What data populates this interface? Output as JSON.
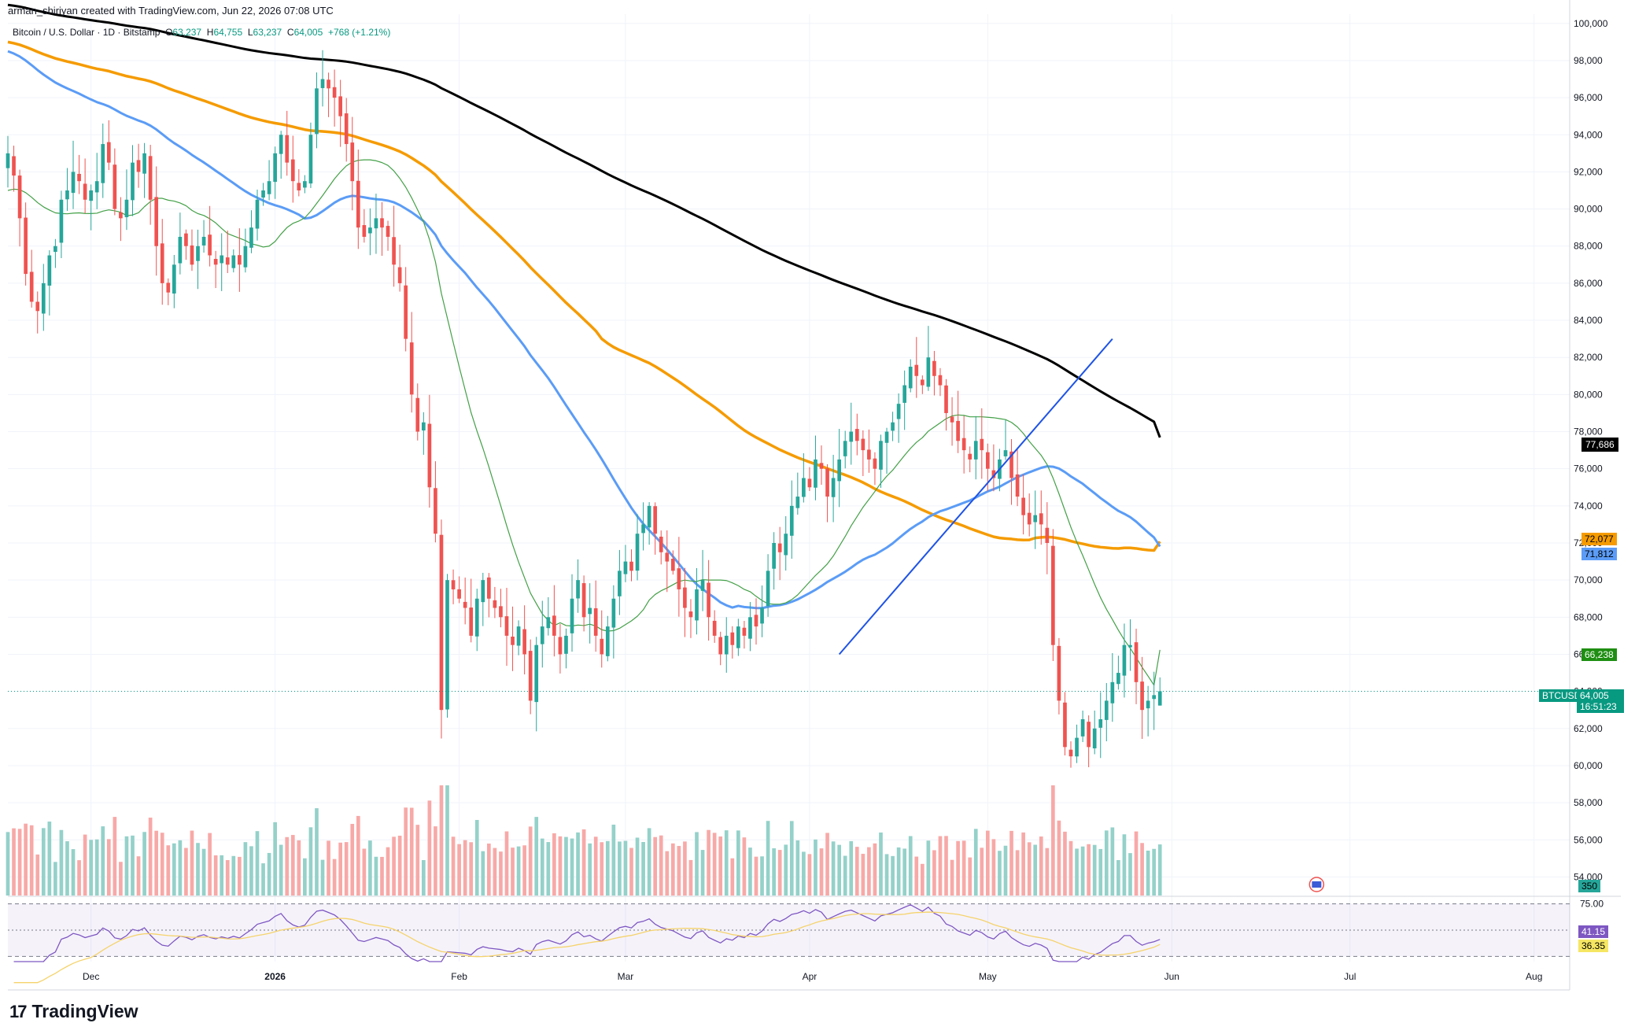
{
  "header": {
    "author_line": "arman_shiriyan created with TradingView.com, Jun 22, 2026 07:08 UTC"
  },
  "legend": {
    "symbol": "Bitcoin / U.S. Dollar · 1D · Bitstamp",
    "o_label": "O",
    "o": "63,237",
    "h_label": "H",
    "h": "64,755",
    "l_label": "L",
    "l": "63,237",
    "c_label": "C",
    "c": "64,005",
    "change": "+768 (+1.21%)"
  },
  "brand": {
    "name": "TradingView",
    "mark": "17"
  },
  "tags": {
    "ma200": "77,686",
    "ma100": "72,077",
    "ma50": "71,812",
    "ma20": "66,238",
    "symbol": "BTCUSD",
    "price": "64,005",
    "countdown": "16:51:23",
    "volume": "350",
    "rsi": "41.15",
    "rsi_ma": "36.35"
  },
  "colors": {
    "up": "#26a69a",
    "down": "#ef5350",
    "vol_up": "#94d1c9",
    "vol_down": "#f7a9a7",
    "ma20": "#43a047",
    "ma50": "#5b9cf6",
    "ma100": "#f59b00",
    "ma200": "#000000",
    "trendline": "#1e53e5",
    "rsi": "#7e57c2",
    "rsi_ma": "#f5d36b"
  },
  "chart_data": {
    "type": "candlestick",
    "symbol": "BTCUSD",
    "timeframe": "1D",
    "exchange": "Bitstamp",
    "price_axis": {
      "min": 53000,
      "max": 100500,
      "ticks": [
        "100,000",
        "98,000",
        "96,000",
        "94,000",
        "92,000",
        "90,000",
        "88,000",
        "86,000",
        "84,000",
        "82,000",
        "80,000",
        "78,000",
        "76,000",
        "74,000",
        "72,000",
        "70,000",
        "68,000",
        "66,000",
        "64,000",
        "62,000",
        "60,000",
        "58,000",
        "56,000",
        "54,000"
      ]
    },
    "time_axis": {
      "start": "2025-11-17",
      "end": "2026-08-07",
      "labels": [
        {
          "date": "2025-12-01",
          "text": "Dec"
        },
        {
          "date": "2026-01-01",
          "text": "2026"
        },
        {
          "date": "2026-02-01",
          "text": "Feb"
        },
        {
          "date": "2026-03-01",
          "text": "Mar"
        },
        {
          "date": "2026-04-01",
          "text": "Apr"
        },
        {
          "date": "2026-05-01",
          "text": "May"
        },
        {
          "date": "2026-06-01",
          "text": "Jun"
        },
        {
          "date": "2026-07-01",
          "text": "Jul"
        },
        {
          "date": "2026-08-01",
          "text": "Aug"
        }
      ]
    },
    "closes": {
      "start": "2025-11-17",
      "values": [
        93000,
        91800,
        89500,
        86500,
        85000,
        84500,
        86000,
        87500,
        88000,
        90500,
        91000,
        92000,
        91500,
        90500,
        91000,
        91500,
        93500,
        92500,
        90000,
        89500,
        90500,
        92500,
        92000,
        93000,
        90500,
        88000,
        86000,
        85500,
        87000,
        88500,
        88000,
        87000,
        88000,
        88500,
        87500,
        87000,
        87500,
        87000,
        87500,
        87000,
        88000,
        89000,
        90500,
        91000,
        91500,
        93000,
        94000,
        92500,
        91500,
        91000,
        91500,
        94000,
        96500,
        97000,
        96500,
        96000,
        95000,
        93500,
        91500,
        89000,
        88500,
        89000,
        89500,
        89000,
        88500,
        87000,
        86000,
        83000,
        80000,
        78000,
        78500,
        75000,
        72500,
        63000,
        70000,
        69500,
        69000,
        68500,
        67000,
        69000,
        70000,
        69000,
        68500,
        68000,
        67000,
        66500,
        67500,
        66000,
        63500,
        66500,
        67500,
        68000,
        67000,
        66000,
        67000,
        69000,
        70000,
        68000,
        68500,
        67000,
        66000,
        67500,
        69000,
        70500,
        71000,
        70500,
        72500,
        73000,
        74000,
        72500,
        71500,
        71000,
        70500,
        69500,
        68500,
        68000,
        69500,
        70000,
        68000,
        67000,
        66000,
        67000,
        66500,
        67500,
        67000,
        68000,
        67500,
        68500,
        70500,
        72000,
        71500,
        72500,
        74000,
        74500,
        75500,
        75000,
        76500,
        76000,
        74500,
        75500,
        76500,
        77500,
        78000,
        77500,
        77000,
        76500,
        76000,
        77500,
        78000,
        78500,
        79500,
        80500,
        81500,
        81000,
        80500,
        82000,
        81000,
        80500,
        79000,
        78500,
        77500,
        77000,
        76500,
        77500,
        77000,
        76000,
        75500,
        76500,
        77000,
        75500,
        74500,
        73500,
        73000,
        73500,
        73000,
        72000,
        66500,
        63500,
        61000,
        60500,
        61500,
        62500,
        61000,
        62000,
        62500,
        63500,
        64500,
        65000,
        66500,
        66500,
        64500,
        63000,
        63500,
        63800,
        64005
      ]
    },
    "moving_averages": [
      {
        "period": "SMA 20",
        "color": "#43a047",
        "last": 66238
      },
      {
        "period": "SMA 50",
        "color": "#5b9cf6",
        "last": 71812
      },
      {
        "period": "SMA 100",
        "color": "#f59b00",
        "last": 72077
      },
      {
        "period": "SMA 200",
        "color": "#000000",
        "last": 77686
      }
    ],
    "trendline": {
      "from": {
        "date": "2026-04-06",
        "price": 66000
      },
      "to": {
        "date": "2026-05-22",
        "price": 83000
      }
    },
    "last_price": 64005,
    "volume": {
      "last": 350
    },
    "rsi": {
      "levels": [
        "75.00",
        "50.00"
      ],
      "oversold_line": 25,
      "last": 41.15,
      "ma_last": 36.35,
      "range": [
        20,
        80
      ]
    }
  }
}
